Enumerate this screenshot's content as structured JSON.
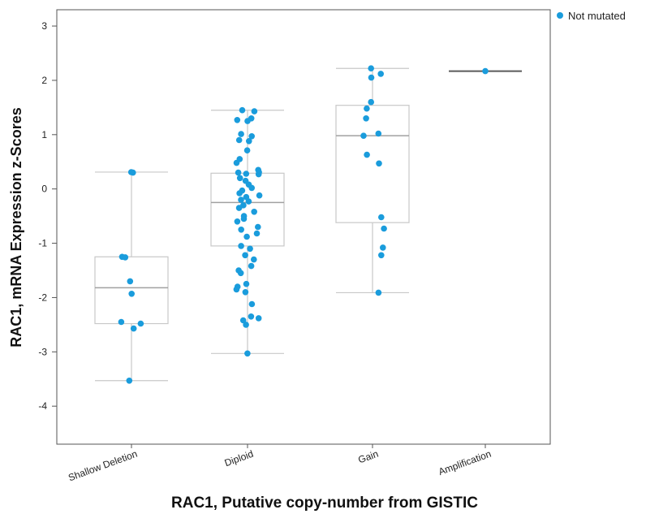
{
  "chart_data": {
    "type": "box_strip",
    "xlabel": "RAC1, Putative copy-number from GISTIC",
    "ylabel": "RAC1, mRNA Expression z-Scores",
    "ylim": [
      -4.7,
      3.3
    ],
    "yticks": [
      -4,
      -3,
      -2,
      -1,
      0,
      1,
      2,
      3
    ],
    "categories": [
      "Shallow Deletion",
      "Diploid",
      "Gain",
      "Amplification"
    ],
    "legend": {
      "label": "Not mutated",
      "color": "#1a9cdc",
      "position": "top-right"
    },
    "boxes": [
      {
        "category": "Shallow Deletion",
        "min": -3.53,
        "q1": -2.48,
        "median": -1.82,
        "q3": -1.25,
        "max": 0.31
      },
      {
        "category": "Diploid",
        "min": -3.03,
        "q1": -1.05,
        "median": -0.25,
        "q3": 0.29,
        "max": 1.45
      },
      {
        "category": "Gain",
        "min": -1.91,
        "q1": -0.62,
        "median": 0.98,
        "q3": 1.54,
        "max": 2.22
      },
      {
        "category": "Amplification",
        "min": 2.17,
        "q1": 2.17,
        "median": 2.17,
        "q3": 2.17,
        "max": 2.17
      }
    ],
    "points": [
      {
        "category": "Shallow Deletion",
        "values": [
          0.31,
          0.3,
          -1.25,
          -1.26,
          -1.7,
          -1.93,
          -2.45,
          -2.48,
          -2.57,
          -3.53
        ]
      },
      {
        "category": "Diploid",
        "values": [
          1.45,
          1.43,
          1.3,
          1.27,
          1.25,
          1.01,
          0.97,
          0.9,
          0.88,
          0.71,
          0.55,
          0.48,
          0.35,
          0.31,
          0.3,
          0.28,
          0.27,
          0.2,
          0.15,
          0.08,
          0.02,
          -0.03,
          -0.08,
          -0.12,
          -0.15,
          -0.2,
          -0.23,
          -0.3,
          -0.35,
          -0.42,
          -0.5,
          -0.55,
          -0.6,
          -0.7,
          -0.75,
          -0.82,
          -0.88,
          -1.05,
          -1.1,
          -1.22,
          -1.3,
          -1.42,
          -1.5,
          -1.55,
          -1.75,
          -1.8,
          -1.85,
          -1.9,
          -2.12,
          -2.35,
          -2.38,
          -2.42,
          -2.5,
          -3.03
        ]
      },
      {
        "category": "Gain",
        "values": [
          2.22,
          2.12,
          2.05,
          1.6,
          1.48,
          1.3,
          1.02,
          0.98,
          0.63,
          0.47,
          -0.52,
          -0.73,
          -1.08,
          -1.22,
          -1.91
        ]
      },
      {
        "category": "Amplification",
        "values": [
          2.17
        ]
      }
    ],
    "colors": {
      "point": "#1a9cdc",
      "box": "#c8c8c8",
      "median": "#a0a0a0",
      "amp_line": "#5a5a5a",
      "frame": "#555555"
    }
  }
}
